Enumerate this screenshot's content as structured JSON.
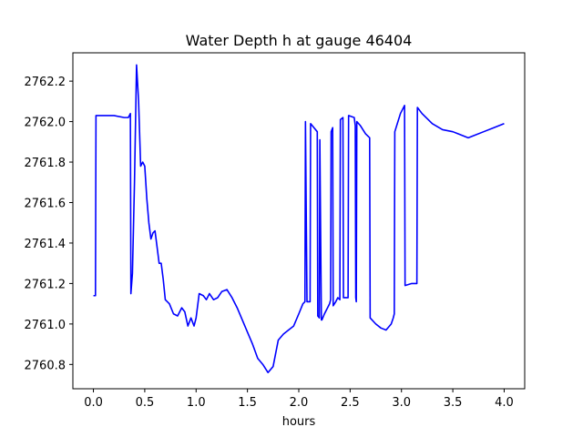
{
  "chart_data": {
    "type": "line",
    "title": "Water Depth h at gauge 46404",
    "xlabel": "hours",
    "ylabel": "",
    "xlim": [
      -0.2,
      4.2
    ],
    "ylim": [
      2760.68,
      2762.34
    ],
    "grid": false,
    "x_ticks": [
      0.0,
      0.5,
      1.0,
      1.5,
      2.0,
      2.5,
      3.0,
      3.5,
      4.0
    ],
    "x_tick_labels": [
      "0.0",
      "0.5",
      "1.0",
      "1.5",
      "2.0",
      "2.5",
      "3.0",
      "3.5",
      "4.0"
    ],
    "y_ticks": [
      2760.8,
      2761.0,
      2761.2,
      2761.4,
      2761.6,
      2761.8,
      2762.0,
      2762.2
    ],
    "y_tick_labels": [
      "2760.8",
      "2761.0",
      "2761.2",
      "2761.4",
      "2761.6",
      "2761.8",
      "2762.0",
      "2762.2"
    ],
    "series": [
      {
        "color": "#0000ff",
        "x": [
          0.0,
          0.02,
          0.025,
          0.1,
          0.2,
          0.3,
          0.34,
          0.36,
          0.365,
          0.38,
          0.4,
          0.42,
          0.44,
          0.46,
          0.48,
          0.5,
          0.52,
          0.54,
          0.56,
          0.58,
          0.6,
          0.62,
          0.64,
          0.66,
          0.68,
          0.7,
          0.74,
          0.78,
          0.82,
          0.86,
          0.89,
          0.92,
          0.95,
          0.98,
          1.0,
          1.03,
          1.07,
          1.1,
          1.13,
          1.17,
          1.21,
          1.25,
          1.3,
          1.35,
          1.4,
          1.45,
          1.5,
          1.55,
          1.6,
          1.65,
          1.7,
          1.75,
          1.8,
          1.85,
          1.9,
          1.95,
          2.0,
          2.04,
          2.06,
          2.065,
          2.08,
          2.11,
          2.115,
          2.18,
          2.185,
          2.2,
          2.205,
          2.22,
          2.225,
          2.25,
          2.3,
          2.31,
          2.315,
          2.33,
          2.335,
          2.36,
          2.38,
          2.4,
          2.405,
          2.43,
          2.435,
          2.48,
          2.485,
          2.54,
          2.55,
          2.555,
          2.56,
          2.565,
          2.6,
          2.65,
          2.69,
          2.695,
          2.75,
          2.8,
          2.85,
          2.9,
          2.92,
          2.93,
          2.935,
          2.99,
          3.03,
          3.035,
          3.1,
          3.15,
          3.155,
          3.2,
          3.3,
          3.4,
          3.5,
          3.55,
          3.6,
          3.65,
          3.7,
          3.8,
          3.9,
          4.0
        ],
        "y": [
          2761.14,
          2761.14,
          2762.03,
          2762.03,
          2762.03,
          2762.02,
          2762.02,
          2762.04,
          2761.15,
          2761.25,
          2761.7,
          2762.28,
          2762.1,
          2761.78,
          2761.8,
          2761.78,
          2761.62,
          2761.5,
          2761.42,
          2761.45,
          2761.46,
          2761.38,
          2761.3,
          2761.3,
          2761.22,
          2761.12,
          2761.1,
          2761.05,
          2761.04,
          2761.08,
          2761.06,
          2760.99,
          2761.03,
          2760.99,
          2761.03,
          2761.15,
          2761.14,
          2761.12,
          2761.15,
          2761.12,
          2761.13,
          2761.16,
          2761.17,
          2761.13,
          2761.08,
          2761.02,
          2760.96,
          2760.9,
          2760.83,
          2760.8,
          2760.76,
          2760.79,
          2760.92,
          2760.95,
          2760.97,
          2760.99,
          2761.05,
          2761.1,
          2761.11,
          2762.0,
          2761.11,
          2761.11,
          2761.99,
          2761.95,
          2761.04,
          2761.03,
          2761.91,
          2761.02,
          2761.02,
          2761.05,
          2761.1,
          2761.12,
          2761.95,
          2761.97,
          2761.09,
          2761.11,
          2761.13,
          2761.12,
          2762.01,
          2762.02,
          2761.13,
          2761.13,
          2762.03,
          2762.02,
          2761.98,
          2761.13,
          2761.11,
          2762.0,
          2761.98,
          2761.94,
          2761.92,
          2761.03,
          2761.0,
          2760.98,
          2760.97,
          2761.0,
          2761.03,
          2761.05,
          2761.95,
          2762.04,
          2762.08,
          2761.19,
          2761.2,
          2761.2,
          2762.07,
          2762.04,
          2761.99,
          2761.96,
          2761.95,
          2761.94,
          2761.93,
          2761.92,
          2761.93,
          2761.95,
          2761.97,
          2761.99
        ]
      }
    ]
  }
}
